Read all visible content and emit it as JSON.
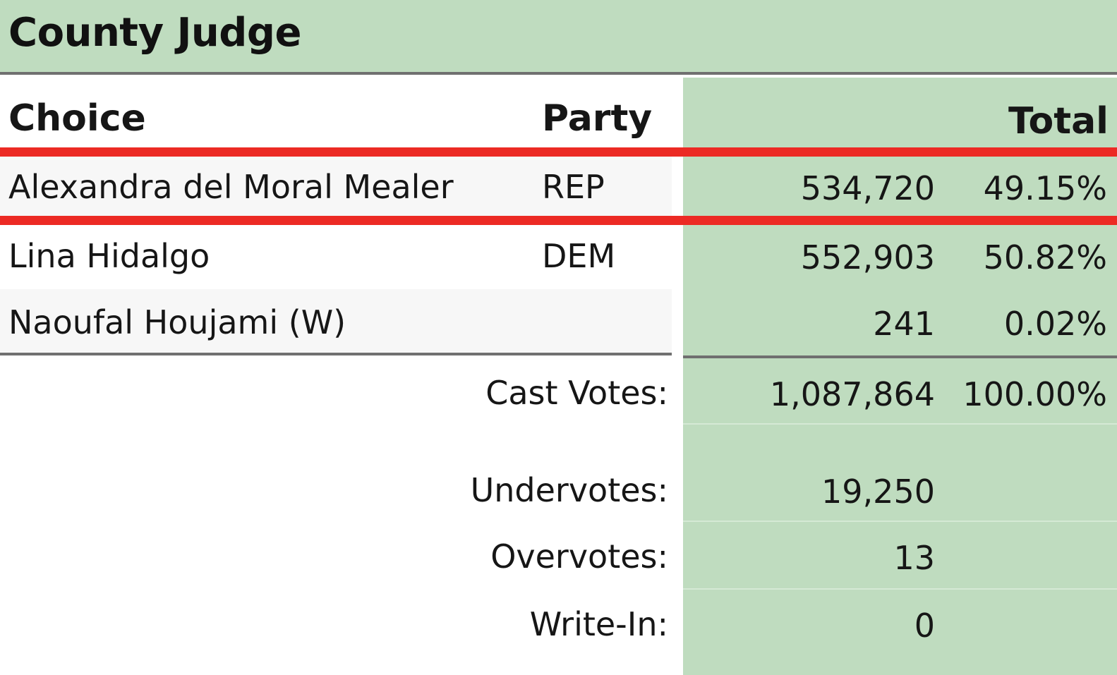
{
  "contest": {
    "title": "County Judge"
  },
  "header": {
    "choice": "Choice",
    "party": "Party",
    "total": "Total"
  },
  "candidates": [
    {
      "name": "Alexandra del Moral Mealer",
      "party": "REP",
      "votes": "534,720",
      "percent": "49.15%",
      "highlighted": true
    },
    {
      "name": "Lina Hidalgo",
      "party": "DEM",
      "votes": "552,903",
      "percent": "50.82%",
      "highlighted": false
    },
    {
      "name": "Naoufal Houjami (W)",
      "party": "",
      "votes": "241",
      "percent": "0.02%",
      "highlighted": false
    }
  ],
  "summary": {
    "cast_votes": {
      "label": "Cast Votes:",
      "votes": "1,087,864",
      "percent": "100.00%"
    },
    "undervotes": {
      "label": "Undervotes:",
      "votes": "19,250"
    },
    "overvotes": {
      "label": "Overvotes:",
      "votes": "13"
    },
    "write_in": {
      "label": "Write-In:",
      "votes": "0"
    }
  },
  "colors": {
    "green_fill": "#bfdcbf",
    "highlight_border": "#ec2a24",
    "row_alt": "#f7f7f7",
    "rule": "#707070"
  }
}
